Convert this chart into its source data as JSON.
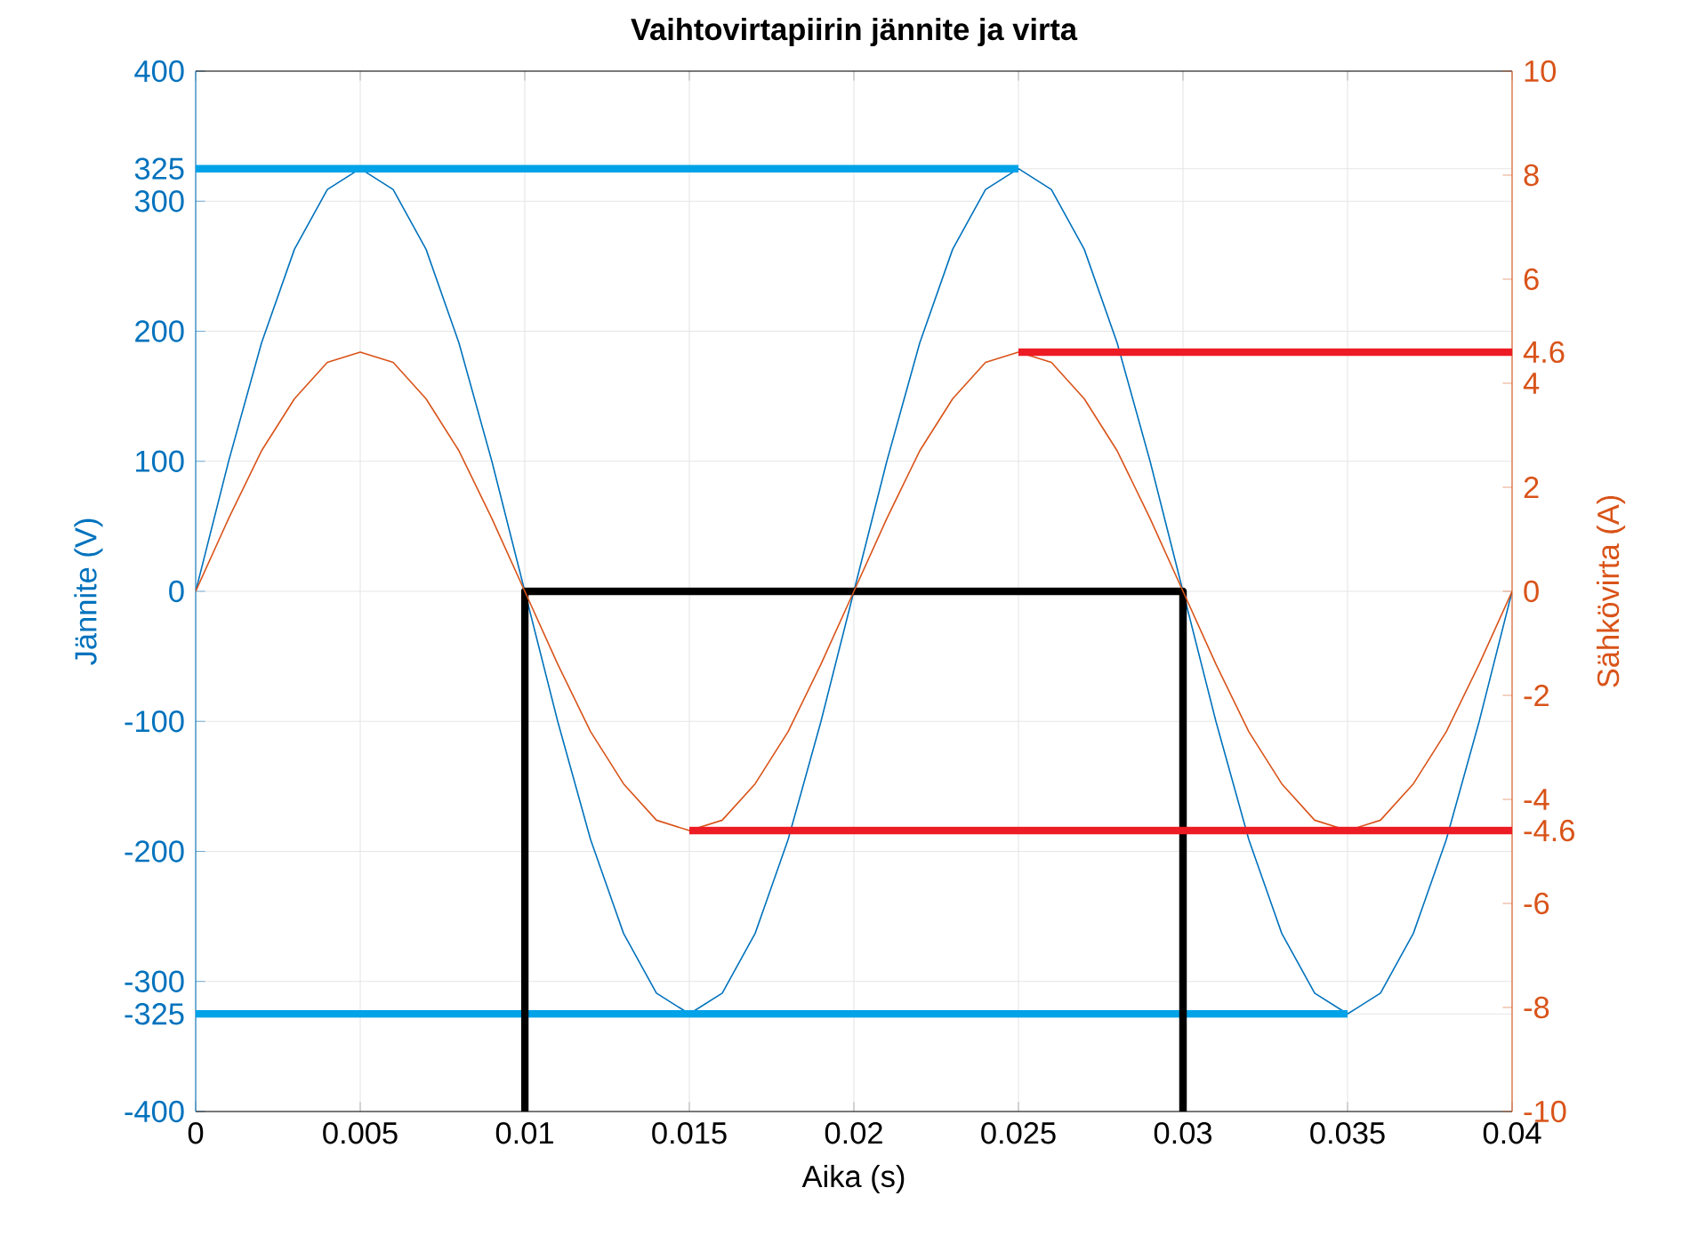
{
  "chart_data": {
    "type": "line",
    "title": "Vaihtovirtapiirin jännite ja virta",
    "xlabel": "Aika (s)",
    "ylabel": "Jännite (V)",
    "y2label": "Sähkövirta (A)",
    "x": [
      0,
      0.001,
      0.002,
      0.003,
      0.004,
      0.005,
      0.006,
      0.007,
      0.008,
      0.009,
      0.01,
      0.011,
      0.012,
      0.013,
      0.014,
      0.015,
      0.016,
      0.017,
      0.018,
      0.019,
      0.02,
      0.021,
      0.022,
      0.023,
      0.024,
      0.025,
      0.026,
      0.027,
      0.028,
      0.029,
      0.03,
      0.031,
      0.032,
      0.033,
      0.034,
      0.035,
      0.036,
      0.037,
      0.038,
      0.039,
      0.04
    ],
    "series": [
      {
        "color": "#0072bd",
        "values": [
          0,
          100,
          191,
          263,
          309,
          325,
          309,
          263,
          191,
          100,
          0,
          -100,
          -191,
          -263,
          -309,
          -325,
          -309,
          -263,
          -191,
          -100,
          0,
          100,
          191,
          263,
          309,
          325,
          309,
          263,
          191,
          100,
          0,
          -100,
          -191,
          -263,
          -309,
          -325,
          -309,
          -263,
          -191,
          -100,
          0
        ]
      },
      {
        "color": "#d95319",
        "axis": "y2",
        "values": [
          0,
          1.4,
          2.7,
          3.7,
          4.4,
          4.6,
          4.4,
          3.7,
          2.7,
          1.4,
          0,
          -1.4,
          -2.7,
          -3.7,
          -4.4,
          -4.6,
          -4.4,
          -3.7,
          -2.7,
          -1.4,
          0,
          1.4,
          2.7,
          3.7,
          4.4,
          4.6,
          4.4,
          3.7,
          2.7,
          1.4,
          0,
          -1.4,
          -2.7,
          -3.7,
          -4.4,
          -4.6,
          -4.4,
          -3.7,
          -2.7,
          -1.4,
          0
        ]
      },
      {
        "color": "#00a2e8",
        "x": [
          0,
          0.025
        ],
        "values": [
          325,
          325
        ]
      },
      {
        "color": "#00a2e8",
        "x": [
          0,
          0.035
        ],
        "values": [
          -325,
          -325
        ]
      },
      {
        "color": "#000000",
        "x": [
          0.01,
          0.01,
          0.03,
          0.03
        ],
        "values": [
          -400,
          0,
          0,
          -400
        ]
      },
      {
        "color": "#ed1c24",
        "axis": "y2",
        "x": [
          0.025,
          0.04
        ],
        "values": [
          4.6,
          4.6
        ]
      },
      {
        "color": "#ed1c24",
        "axis": "y2",
        "x": [
          0.015,
          0.04
        ],
        "values": [
          -4.6,
          -4.6
        ]
      }
    ],
    "xlim": [
      0,
      0.04
    ],
    "xticks": [
      0,
      0.005,
      0.01,
      0.015,
      0.02,
      0.025,
      0.03,
      0.035,
      0.04
    ],
    "ylim": [
      -400,
      400
    ],
    "yticks": [
      -400,
      -325,
      -300,
      -200,
      -100,
      0,
      100,
      200,
      300,
      325,
      400
    ],
    "y2lim": [
      -10,
      10
    ],
    "y2ticks": [
      -10,
      -8,
      -6,
      -4.6,
      -4,
      -2,
      0,
      2,
      4,
      4.6,
      6,
      8,
      10
    ],
    "grid": true,
    "marker": "none",
    "line_style": "solid"
  }
}
